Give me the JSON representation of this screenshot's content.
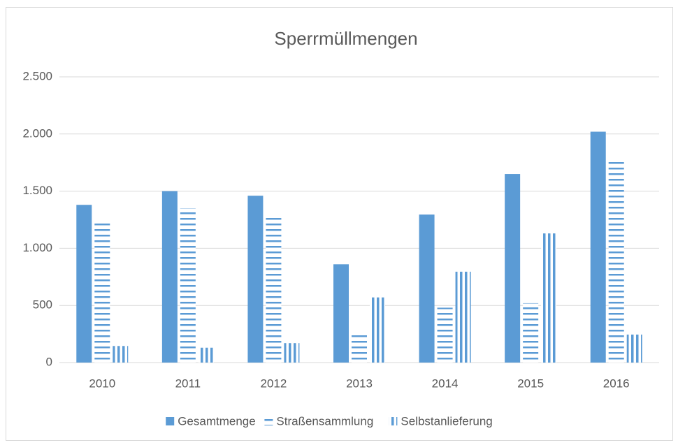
{
  "chart_data": {
    "type": "bar",
    "title": "Sperrmüllmengen",
    "categories": [
      "2010",
      "2011",
      "2012",
      "2013",
      "2014",
      "2015",
      "2016"
    ],
    "series": [
      {
        "name": "Gesamtmenge",
        "color": "#5b9bd5",
        "pattern": "solid",
        "values": [
          1380,
          1500,
          1460,
          860,
          1295,
          1650,
          2020
        ]
      },
      {
        "name": "Straßensammlung",
        "color": "#5b9bd5",
        "pattern": "horizontal",
        "values": [
          1230,
          1350,
          1280,
          265,
          480,
          520,
          1760
        ]
      },
      {
        "name": "Selbstanlieferung",
        "color": "#5b9bd5",
        "pattern": "vertical",
        "values": [
          145,
          130,
          170,
          570,
          795,
          1130,
          245
        ]
      }
    ],
    "ylim": [
      0,
      2500
    ],
    "yticks": [
      0,
      500,
      {
        "value": 1000,
        "label": "1.000"
      },
      {
        "value": 1500,
        "label": "1.500"
      },
      {
        "value": 2000,
        "label": "2.000"
      },
      {
        "value": 2500,
        "label": "2.500"
      }
    ],
    "grid": true,
    "legend": "bottom"
  }
}
